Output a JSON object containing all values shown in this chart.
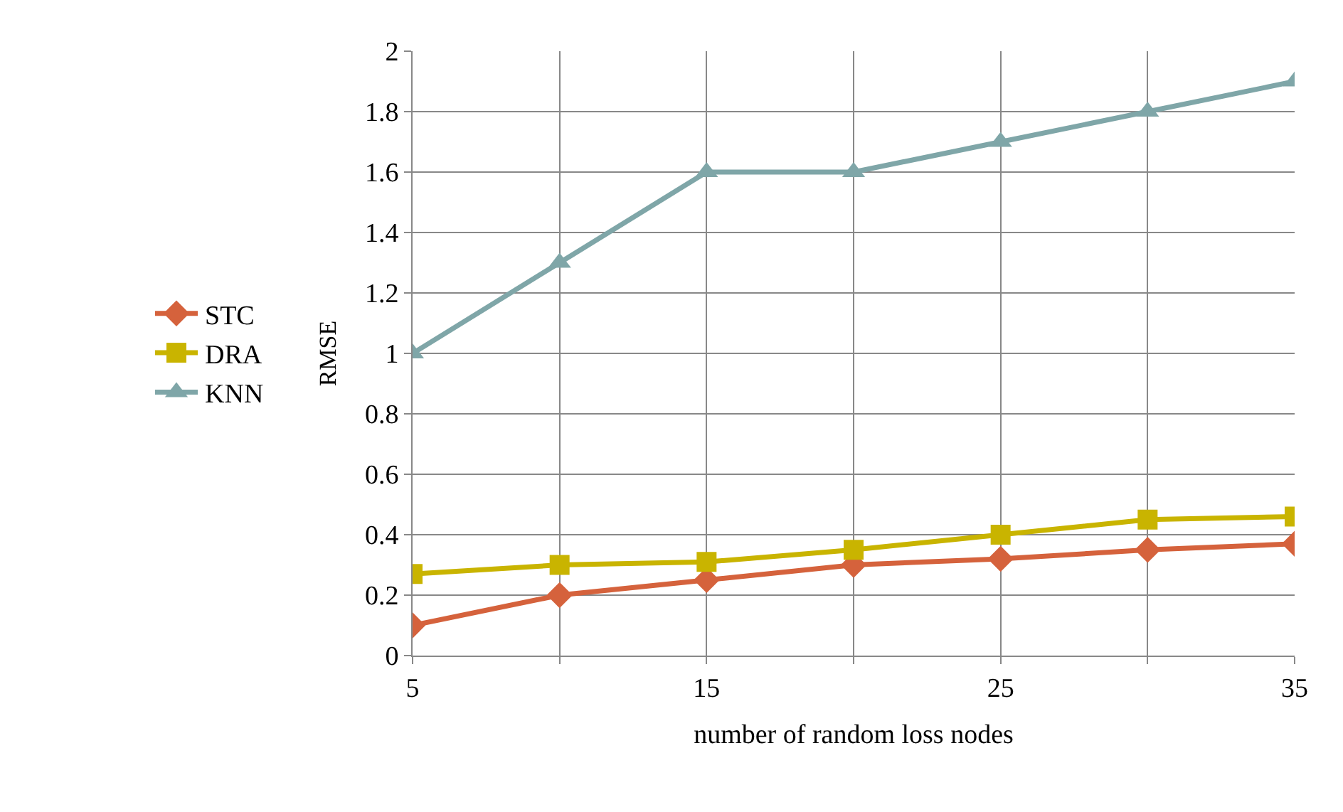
{
  "chart_data": {
    "type": "line",
    "xlabel": "number of random loss nodes",
    "ylabel": "RMSE",
    "x": [
      5,
      10,
      15,
      20,
      25,
      30,
      35
    ],
    "series": [
      {
        "name": "STC",
        "color": "#d5623c",
        "marker": "diamond",
        "values": [
          0.1,
          0.2,
          0.25,
          0.3,
          0.32,
          0.35,
          0.37
        ]
      },
      {
        "name": "DRA",
        "color": "#c9b400",
        "marker": "square",
        "values": [
          0.27,
          0.3,
          0.31,
          0.35,
          0.4,
          0.45,
          0.46
        ]
      },
      {
        "name": "KNN",
        "color": "#7fa6a8",
        "marker": "triangle",
        "values": [
          1.0,
          1.3,
          1.6,
          1.6,
          1.7,
          1.8,
          1.9
        ]
      }
    ],
    "xlim": [
      5,
      35
    ],
    "xticks": [
      5,
      {
        "value": 10,
        "label": null
      },
      15,
      {
        "value": 20,
        "label": null
      },
      25,
      {
        "value": 30,
        "label": null
      },
      35
    ],
    "ylim": [
      0,
      2
    ],
    "yticks": [
      0,
      0.2,
      0.4,
      0.6,
      0.8,
      1,
      1.2,
      1.4,
      1.6,
      1.8,
      2
    ],
    "grid": true,
    "legend": "left",
    "line_style": "solid"
  }
}
